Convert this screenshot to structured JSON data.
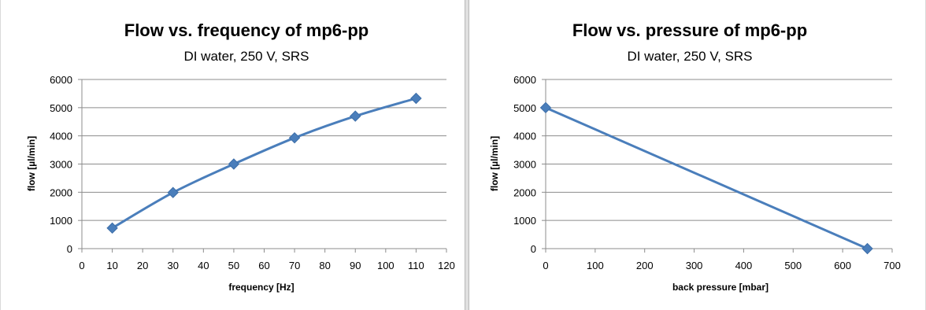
{
  "chart_data": [
    {
      "type": "line",
      "title": "Flow vs. frequency of mp6-pp",
      "subtitle": "DI water, 250 V, SRS",
      "xlabel": "frequency [Hz]",
      "ylabel": "flow [µl/min]",
      "xlim": [
        0,
        120
      ],
      "ylim": [
        0,
        6000
      ],
      "xticks": [
        0,
        10,
        20,
        30,
        40,
        50,
        60,
        70,
        80,
        90,
        100,
        110,
        120
      ],
      "yticks": [
        0,
        1000,
        2000,
        3000,
        4000,
        5000,
        6000
      ],
      "grid": "horizontal",
      "marker": "diamond",
      "color": "#4a7ebb",
      "x": [
        10,
        30,
        50,
        70,
        90,
        110
      ],
      "y": [
        730,
        1990,
        3000,
        3930,
        4700,
        5330
      ]
    },
    {
      "type": "line",
      "title": "Flow vs. pressure of mp6-pp",
      "subtitle": "DI water, 250 V, SRS",
      "xlabel": "back pressure [mbar]",
      "ylabel": "flow [µl/min]",
      "xlim": [
        0,
        700
      ],
      "ylim": [
        0,
        6000
      ],
      "xticks": [
        0,
        100,
        200,
        300,
        400,
        500,
        600,
        700
      ],
      "yticks": [
        0,
        1000,
        2000,
        3000,
        4000,
        5000,
        6000
      ],
      "grid": "horizontal",
      "marker": "diamond",
      "color": "#4a7ebb",
      "x": [
        0,
        650
      ],
      "y": [
        5000,
        0
      ]
    }
  ]
}
